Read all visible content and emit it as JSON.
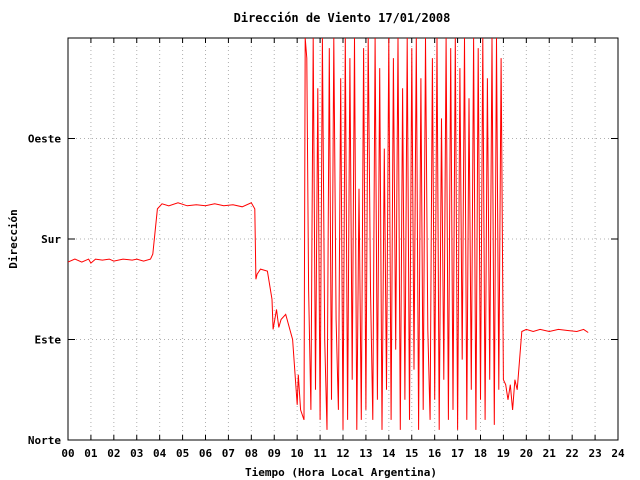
{
  "chart_data": {
    "type": "line",
    "title": "Dirección de Viento 17/01/2008",
    "xlabel": "Tiempo (Hora Local Argentina)",
    "ylabel": "Dirección",
    "xlim": [
      0,
      24
    ],
    "ylim": [
      0,
      4
    ],
    "x_tick_labels": [
      "00",
      "01",
      "02",
      "03",
      "04",
      "05",
      "06",
      "07",
      "08",
      "09",
      "10",
      "11",
      "12",
      "13",
      "14",
      "15",
      "16",
      "17",
      "18",
      "19",
      "20",
      "21",
      "22",
      "23",
      "24"
    ],
    "y_ticks": [
      {
        "value": 0,
        "label": "Norte"
      },
      {
        "value": 1,
        "label": "Este"
      },
      {
        "value": 2,
        "label": "Sur"
      },
      {
        "value": 3,
        "label": "Oeste"
      }
    ],
    "grid": true,
    "line_color": "#ff0000",
    "series": [
      {
        "x": [
          0.0,
          0.3,
          0.6,
          0.9,
          1.0,
          1.2,
          1.5,
          1.8,
          2.0,
          2.4,
          2.8,
          3.0,
          3.3,
          3.6,
          3.7,
          3.9,
          4.1,
          4.4,
          4.8,
          5.2,
          5.6,
          6.0,
          6.4,
          6.8,
          7.2,
          7.6,
          8.0,
          8.15,
          8.2,
          8.25,
          8.4,
          8.7,
          8.9,
          8.95,
          9.1,
          9.2,
          9.3,
          9.5,
          9.8,
          10.0,
          10.05,
          10.15,
          10.3,
          10.35,
          10.42,
          10.5,
          10.6,
          10.7,
          10.8,
          10.9,
          11.0,
          11.1,
          11.2,
          11.3,
          11.4,
          11.5,
          11.6,
          11.7,
          11.8,
          11.9,
          12.0,
          12.1,
          12.2,
          12.3,
          12.4,
          12.5,
          12.6,
          12.7,
          12.8,
          12.9,
          13.0,
          13.1,
          13.2,
          13.3,
          13.4,
          13.5,
          13.6,
          13.7,
          13.8,
          13.9,
          14.0,
          14.1,
          14.2,
          14.3,
          14.4,
          14.5,
          14.6,
          14.7,
          14.8,
          14.9,
          15.0,
          15.1,
          15.2,
          15.3,
          15.4,
          15.5,
          15.6,
          15.7,
          15.8,
          15.9,
          16.0,
          16.1,
          16.2,
          16.3,
          16.4,
          16.5,
          16.6,
          16.7,
          16.8,
          16.9,
          17.0,
          17.1,
          17.2,
          17.3,
          17.4,
          17.5,
          17.6,
          17.7,
          17.8,
          17.9,
          18.0,
          18.1,
          18.2,
          18.3,
          18.4,
          18.5,
          18.6,
          18.7,
          18.8,
          18.9,
          19.0,
          19.1,
          19.2,
          19.3,
          19.4,
          19.5,
          19.6,
          19.8,
          20.0,
          20.3,
          20.6,
          21.0,
          21.4,
          21.8,
          22.2,
          22.5,
          22.7
        ],
        "y": [
          1.77,
          1.8,
          1.77,
          1.8,
          1.76,
          1.8,
          1.79,
          1.8,
          1.78,
          1.8,
          1.79,
          1.8,
          1.78,
          1.8,
          1.85,
          2.3,
          2.35,
          2.33,
          2.36,
          2.33,
          2.34,
          2.33,
          2.35,
          2.33,
          2.34,
          2.32,
          2.36,
          2.3,
          1.6,
          1.65,
          1.7,
          1.68,
          1.4,
          1.1,
          1.3,
          1.12,
          1.2,
          1.25,
          1.0,
          0.35,
          0.65,
          0.3,
          0.2,
          4.0,
          3.8,
          1.5,
          0.3,
          4.0,
          0.5,
          3.5,
          0.2,
          4.0,
          1.0,
          0.1,
          3.9,
          0.4,
          4.0,
          1.2,
          0.3,
          3.6,
          0.1,
          4.0,
          0.2,
          3.8,
          0.6,
          4.0,
          0.1,
          2.5,
          0.2,
          3.9,
          0.3,
          4.0,
          1.5,
          0.2,
          4.0,
          0.4,
          3.7,
          0.1,
          2.9,
          0.5,
          4.0,
          0.2,
          3.8,
          0.9,
          4.0,
          0.1,
          3.5,
          0.4,
          4.0,
          0.2,
          3.9,
          0.7,
          4.0,
          0.1,
          3.6,
          0.3,
          4.0,
          1.1,
          0.2,
          3.8,
          0.4,
          4.0,
          0.1,
          3.2,
          0.6,
          4.0,
          0.2,
          3.9,
          0.3,
          4.0,
          0.1,
          3.7,
          0.8,
          4.0,
          0.2,
          3.4,
          0.5,
          4.0,
          0.1,
          3.9,
          0.4,
          4.0,
          0.2,
          3.6,
          0.6,
          4.0,
          0.15,
          4.0,
          0.5,
          3.8,
          0.6,
          0.55,
          0.4,
          0.55,
          0.3,
          0.6,
          0.5,
          1.08,
          1.1,
          1.08,
          1.1,
          1.08,
          1.1,
          1.09,
          1.08,
          1.1,
          1.07
        ]
      }
    ]
  }
}
